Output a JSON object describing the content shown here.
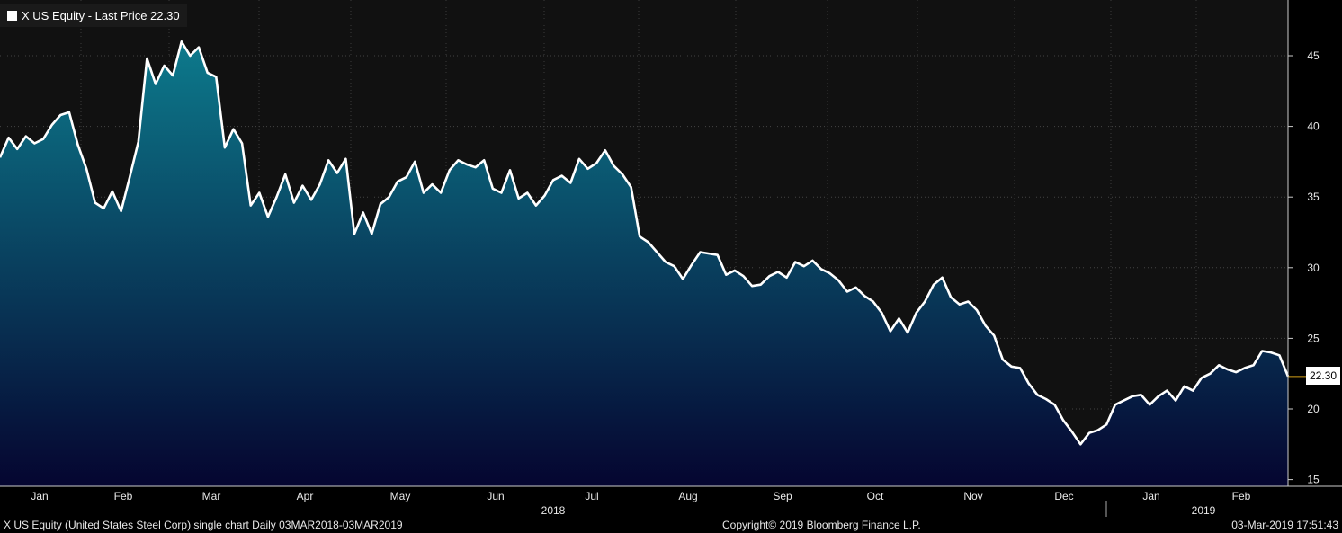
{
  "legend": {
    "label": "X US Equity - Last Price 22.30"
  },
  "price_tag": "22.30",
  "footer": {
    "left": "X US Equity (United States Steel Corp) single chart  Daily 03MAR2018-03MAR2019",
    "center": "Copyright© 2019 Bloomberg Finance L.P.",
    "right": "03-Mar-2019 17:51:43"
  },
  "colors": {
    "line": "#ffffff",
    "fill_top": "#0d7a8c",
    "fill_bottom": "#050530",
    "plot_bg": "#111111",
    "last_price_line": "#d4a017"
  },
  "chart_data": {
    "type": "area",
    "series": [
      {
        "name": "X US Equity - Last Price"
      }
    ],
    "ylim": [
      15,
      48
    ],
    "y_ticks": [
      15,
      20,
      25,
      30,
      35,
      40,
      45
    ],
    "month_ticks": [
      "Jan",
      "Feb",
      "Mar",
      "Apr",
      "May",
      "Jun",
      "Jul",
      "Aug",
      "Sep",
      "Oct",
      "Nov",
      "Dec",
      "Jan",
      "Feb"
    ],
    "year_labels": [
      "2018",
      "2019"
    ],
    "last_price": 22.3,
    "points": [
      [
        0,
        37.8
      ],
      [
        1,
        39.2
      ],
      [
        2,
        38.4
      ],
      [
        3,
        39.3
      ],
      [
        4,
        38.8
      ],
      [
        5,
        39.1
      ],
      [
        6,
        40.1
      ],
      [
        7,
        40.8
      ],
      [
        8,
        41.0
      ],
      [
        9,
        38.7
      ],
      [
        10,
        37.0
      ],
      [
        11,
        34.6
      ],
      [
        12,
        34.2
      ],
      [
        13,
        35.4
      ],
      [
        14,
        34.0
      ],
      [
        15,
        36.4
      ],
      [
        16,
        38.9
      ],
      [
        17,
        44.8
      ],
      [
        18,
        43.0
      ],
      [
        19,
        44.3
      ],
      [
        20,
        43.6
      ],
      [
        21,
        46.0
      ],
      [
        22,
        45.0
      ],
      [
        23,
        45.6
      ],
      [
        24,
        43.8
      ],
      [
        25,
        43.5
      ],
      [
        26,
        38.5
      ],
      [
        27,
        39.8
      ],
      [
        28,
        38.8
      ],
      [
        29,
        34.4
      ],
      [
        30,
        35.3
      ],
      [
        31,
        33.6
      ],
      [
        32,
        35.0
      ],
      [
        33,
        36.6
      ],
      [
        34,
        34.6
      ],
      [
        35,
        35.8
      ],
      [
        36,
        34.8
      ],
      [
        37,
        35.9
      ],
      [
        38,
        37.6
      ],
      [
        39,
        36.7
      ],
      [
        40,
        37.7
      ],
      [
        41,
        32.4
      ],
      [
        42,
        33.9
      ],
      [
        43,
        32.4
      ],
      [
        44,
        34.5
      ],
      [
        45,
        35.0
      ],
      [
        46,
        36.1
      ],
      [
        47,
        36.4
      ],
      [
        48,
        37.5
      ],
      [
        49,
        35.3
      ],
      [
        50,
        35.9
      ],
      [
        51,
        35.3
      ],
      [
        52,
        36.9
      ],
      [
        53,
        37.6
      ],
      [
        54,
        37.3
      ],
      [
        55,
        37.1
      ],
      [
        56,
        37.6
      ],
      [
        57,
        35.6
      ],
      [
        58,
        35.3
      ],
      [
        59,
        36.9
      ],
      [
        60,
        34.9
      ],
      [
        61,
        35.3
      ],
      [
        62,
        34.4
      ],
      [
        63,
        35.1
      ],
      [
        64,
        36.2
      ],
      [
        65,
        36.5
      ],
      [
        66,
        36.0
      ],
      [
        67,
        37.7
      ],
      [
        68,
        37.0
      ],
      [
        69,
        37.4
      ],
      [
        70,
        38.3
      ],
      [
        71,
        37.2
      ],
      [
        72,
        36.6
      ],
      [
        73,
        35.7
      ],
      [
        74,
        32.2
      ],
      [
        75,
        31.8
      ],
      [
        76,
        31.1
      ],
      [
        77,
        30.4
      ],
      [
        78,
        30.1
      ],
      [
        79,
        29.2
      ],
      [
        80,
        30.2
      ],
      [
        81,
        31.1
      ],
      [
        82,
        31.0
      ],
      [
        83,
        30.9
      ],
      [
        84,
        29.5
      ],
      [
        85,
        29.8
      ],
      [
        86,
        29.4
      ],
      [
        87,
        28.7
      ],
      [
        88,
        28.8
      ],
      [
        89,
        29.4
      ],
      [
        90,
        29.7
      ],
      [
        91,
        29.3
      ],
      [
        92,
        30.4
      ],
      [
        93,
        30.1
      ],
      [
        94,
        30.5
      ],
      [
        95,
        29.9
      ],
      [
        96,
        29.6
      ],
      [
        97,
        29.1
      ],
      [
        98,
        28.3
      ],
      [
        99,
        28.6
      ],
      [
        100,
        28.0
      ],
      [
        101,
        27.6
      ],
      [
        102,
        26.8
      ],
      [
        103,
        25.5
      ],
      [
        104,
        26.4
      ],
      [
        105,
        25.4
      ],
      [
        106,
        26.8
      ],
      [
        107,
        27.6
      ],
      [
        108,
        28.8
      ],
      [
        109,
        29.3
      ],
      [
        110,
        27.9
      ],
      [
        111,
        27.4
      ],
      [
        112,
        27.6
      ],
      [
        113,
        27.0
      ],
      [
        114,
        25.9
      ],
      [
        115,
        25.2
      ],
      [
        116,
        23.5
      ],
      [
        117,
        23.0
      ],
      [
        118,
        22.9
      ],
      [
        119,
        21.8
      ],
      [
        120,
        21.0
      ],
      [
        121,
        20.7
      ],
      [
        122,
        20.3
      ],
      [
        123,
        19.2
      ],
      [
        124,
        18.4
      ],
      [
        125,
        17.5
      ],
      [
        126,
        18.3
      ],
      [
        127,
        18.5
      ],
      [
        128,
        18.9
      ],
      [
        129,
        20.3
      ],
      [
        130,
        20.6
      ],
      [
        131,
        20.9
      ],
      [
        132,
        21.0
      ],
      [
        133,
        20.3
      ],
      [
        134,
        20.9
      ],
      [
        135,
        21.3
      ],
      [
        136,
        20.6
      ],
      [
        137,
        21.6
      ],
      [
        138,
        21.3
      ],
      [
        139,
        22.2
      ],
      [
        140,
        22.5
      ],
      [
        141,
        23.1
      ],
      [
        142,
        22.8
      ],
      [
        143,
        22.6
      ],
      [
        144,
        22.9
      ],
      [
        145,
        23.1
      ],
      [
        146,
        24.1
      ],
      [
        147,
        24.0
      ],
      [
        148,
        23.8
      ],
      [
        149,
        22.3
      ]
    ]
  }
}
